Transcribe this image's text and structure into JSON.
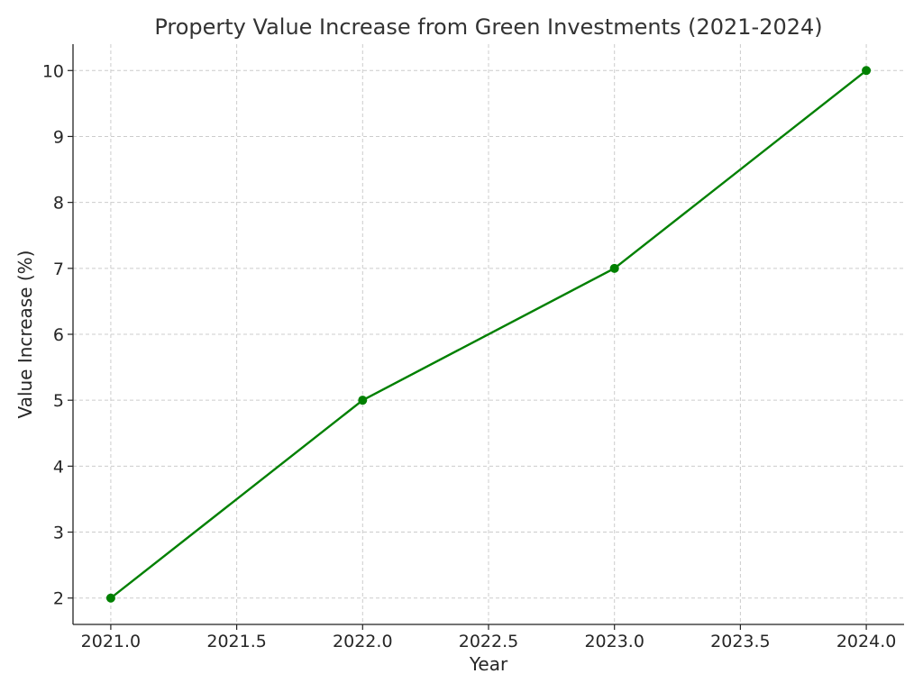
{
  "chart_data": {
    "type": "line",
    "title": "Property Value Increase from Green Investments (2021-2024)",
    "xlabel": "Year",
    "ylabel": "Value Increase (%)",
    "x": [
      2021,
      2022,
      2023,
      2024
    ],
    "series": [
      {
        "values": [
          2,
          5,
          7,
          10
        ],
        "color": "#008000",
        "marker": "circle"
      }
    ],
    "xlim": [
      2020.85,
      2024.15
    ],
    "ylim": [
      1.6,
      10.4
    ],
    "xticks": [
      2021.0,
      2021.5,
      2022.0,
      2022.5,
      2023.0,
      2023.5,
      2024.0
    ],
    "xtick_labels": [
      "2021.0",
      "2021.5",
      "2022.0",
      "2022.5",
      "2023.0",
      "2023.5",
      "2024.0"
    ],
    "yticks": [
      2,
      3,
      4,
      5,
      6,
      7,
      8,
      9,
      10
    ],
    "ytick_labels": [
      "2",
      "3",
      "4",
      "5",
      "6",
      "7",
      "8",
      "9",
      "10"
    ],
    "grid": true,
    "legend": "none"
  }
}
